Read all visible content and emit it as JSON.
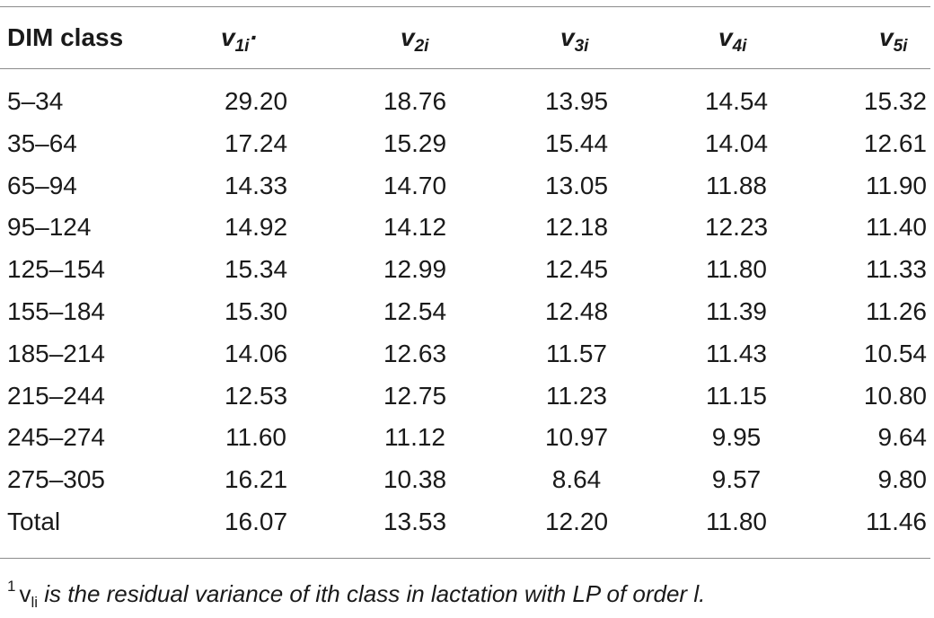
{
  "table": {
    "header": {
      "col0": "DIM class",
      "cols": [
        {
          "v": "v",
          "sub": "1i",
          "tail": "·"
        },
        {
          "v": "v",
          "sub": "2i",
          "tail": ""
        },
        {
          "v": "v",
          "sub": "3i",
          "tail": ""
        },
        {
          "v": "v",
          "sub": "4i",
          "tail": ""
        },
        {
          "v": "v",
          "sub": "5i",
          "tail": ""
        }
      ]
    },
    "rows": [
      {
        "label": "5–34",
        "values": [
          "29.20",
          "18.76",
          "13.95",
          "14.54",
          "15.32"
        ]
      },
      {
        "label": "35–64",
        "values": [
          "17.24",
          "15.29",
          "15.44",
          "14.04",
          "12.61"
        ]
      },
      {
        "label": "65–94",
        "values": [
          "14.33",
          "14.70",
          "13.05",
          "11.88",
          "11.90"
        ]
      },
      {
        "label": "95–124",
        "values": [
          "14.92",
          "14.12",
          "12.18",
          "12.23",
          "11.40"
        ]
      },
      {
        "label": "125–154",
        "values": [
          "15.34",
          "12.99",
          "12.45",
          "11.80",
          "11.33"
        ]
      },
      {
        "label": "155–184",
        "values": [
          "15.30",
          "12.54",
          "12.48",
          "11.39",
          "11.26"
        ]
      },
      {
        "label": "185–214",
        "values": [
          "14.06",
          "12.63",
          "11.57",
          "11.43",
          "10.54"
        ]
      },
      {
        "label": "215–244",
        "values": [
          "12.53",
          "12.75",
          "11.23",
          "11.15",
          "10.80"
        ]
      },
      {
        "label": "245–274",
        "values": [
          "11.60",
          "11.12",
          "10.97",
          "9.95",
          "9.64"
        ]
      },
      {
        "label": "275–305",
        "values": [
          "16.21",
          "10.38",
          "8.64",
          "9.57",
          "9.80"
        ]
      },
      {
        "label": "Total",
        "values": [
          "16.07",
          "13.53",
          "12.20",
          "11.80",
          "11.46"
        ]
      }
    ]
  },
  "footnote": {
    "mark": "1",
    "var": "v",
    "var_sub": "li",
    "text": " is the residual variance of ith class in lactation with LP of order l."
  }
}
